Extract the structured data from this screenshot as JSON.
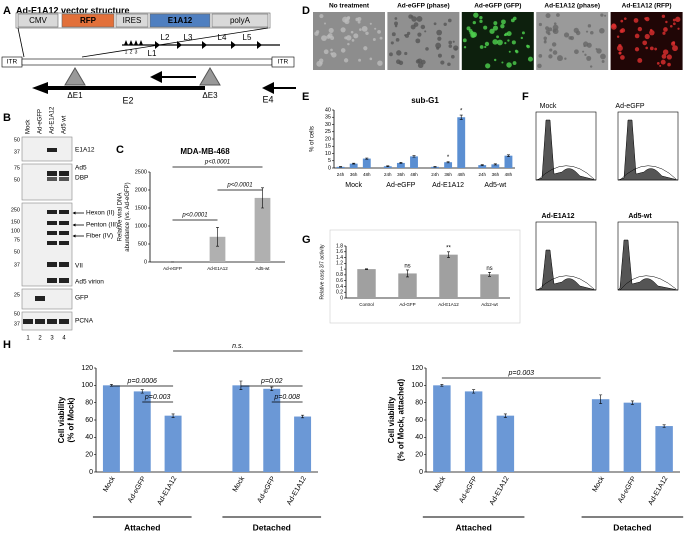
{
  "panel_labels": [
    "A",
    "B",
    "C",
    "D",
    "E",
    "F",
    "G",
    "H"
  ],
  "panel_a": {
    "title": "Ad-E1A12 vector structure",
    "construct": [
      "CMV",
      "RFP",
      "IRES",
      "E1A12",
      "polyA"
    ],
    "genes": [
      "L1",
      "L2",
      "L3",
      "L4",
      "L5"
    ],
    "leader_numbers": [
      "1",
      "2",
      "3"
    ],
    "itr": [
      "ITR",
      "ITR"
    ],
    "deletions": [
      "ΔE1",
      "ΔE3"
    ],
    "transcripts": [
      "E2",
      "E4"
    ]
  },
  "panel_b": {
    "lanes": [
      "Mock",
      "Ad-eGFP",
      "Ad-E1A12",
      "Ad5 wt"
    ],
    "lane_numbers": [
      "1",
      "2",
      "3",
      "4"
    ],
    "markers": [
      50,
      37,
      75,
      50,
      250,
      150,
      100,
      75,
      50,
      37,
      25,
      50,
      37
    ],
    "bands": [
      "E1A12",
      "Ad5",
      "DBP",
      "Hexon (II)",
      "Penton (III)",
      "Fiber (IV)",
      "VII",
      "Ad5 virion",
      "GFP",
      "PCNA"
    ]
  },
  "panel_d": {
    "labels": [
      "No treatment",
      "Ad-eGFP (phase)",
      "Ad-eGFP (GFP)",
      "Ad-E1A12 (phase)",
      "Ad-E1A12 (RFP)"
    ]
  },
  "panel_f": {
    "labels": [
      "Mock",
      "Ad-eGFP",
      "Ad-E1A12",
      "Ad5-wt"
    ]
  },
  "chart_data": [
    {
      "type": "bar",
      "title": "MDA-MB-468",
      "ylabel": [
        "Relative viral DNA",
        "abundance (vs. Ad-eGFP)"
      ],
      "categories": [
        "Ad-eGFP",
        "Ad-E1A12",
        "Ad5-wt"
      ],
      "values": [
        1,
        700,
        1780
      ],
      "errors": [
        0,
        260,
        280
      ],
      "color": "#b0b0b0",
      "ylim": [
        0,
        2500
      ],
      "yticks": [
        0,
        500,
        1000,
        1500,
        2000,
        2500
      ],
      "annotations": [
        "p<0.0001",
        "p<0.0001",
        "p<0.0001"
      ]
    },
    {
      "type": "bar",
      "title": "sub-G1",
      "ylabel": [
        "% of cells"
      ],
      "categories": [
        "24h",
        "36h",
        "48h",
        "24h",
        "36h",
        "48h",
        "24h",
        "36h",
        "48h",
        "24h",
        "36h",
        "48h"
      ],
      "groups": [
        "Mock",
        "Ad-eGFP",
        "Ad-E1A12",
        "Ad5-wt"
      ],
      "values": [
        0.8,
        3,
        6.5,
        1.2,
        3.5,
        8,
        0.8,
        4,
        35,
        2,
        2.5,
        8.5
      ],
      "errors": [
        0.2,
        0.3,
        0.4,
        0.3,
        0.4,
        0.5,
        0.2,
        0.4,
        1.5,
        0.3,
        0.4,
        0.6
      ],
      "color": "#5b8fd2",
      "ylim": [
        0,
        40
      ],
      "yticks": [
        0,
        5,
        10,
        15,
        20,
        25,
        30,
        35,
        40
      ],
      "annotations": [
        "*",
        "*"
      ]
    },
    {
      "type": "bar",
      "ylabel": [
        "Relative casp 3/7 activity"
      ],
      "categories": [
        "Control",
        "Ad-GFP",
        "Ad-E1A12",
        "Ad12-wt"
      ],
      "values": [
        1,
        0.85,
        1.5,
        0.82
      ],
      "errors": [
        0.01,
        0.12,
        0.1,
        0.07
      ],
      "color": "#a0a0a0",
      "ylim": [
        0,
        1.8
      ],
      "yticks": [
        0,
        0.2,
        0.4,
        0.6,
        0.8,
        1,
        1.2,
        1.4,
        1.6,
        1.8
      ],
      "annotations": [
        "ns",
        "**",
        "ns"
      ]
    },
    {
      "type": "bar",
      "ylabel": [
        "Cell viability",
        "(% of Mock)"
      ],
      "categories": [
        "Mock",
        "Ad-eGFP",
        "Ad-E1A12",
        "Mock",
        "Ad-eGFP",
        "Ad-E1A12"
      ],
      "groups": [
        "Attached",
        "Detached"
      ],
      "values": [
        100,
        93,
        65,
        100,
        96,
        64
      ],
      "errors": [
        1,
        2,
        2,
        5,
        2,
        1.5
      ],
      "color": "#6b98d6",
      "ylim": [
        0,
        120
      ],
      "yticks": [
        0,
        20,
        40,
        60,
        80,
        100,
        120
      ],
      "annotations": [
        "p=0.0006",
        "p=0.003",
        "n.s.",
        "p=0.02",
        "p=0.008"
      ]
    },
    {
      "type": "bar",
      "ylabel": [
        "Cell viability",
        "(% of Mock, attached)"
      ],
      "categories": [
        "Mock",
        "Ad-eGFP",
        "Ad-E1A12",
        "Mock",
        "Ad-eGFP",
        "Ad-E1A12"
      ],
      "groups": [
        "Attached",
        "Detached"
      ],
      "values": [
        100,
        93,
        65,
        84,
        80,
        53
      ],
      "errors": [
        1,
        2,
        2,
        5,
        2,
        1.5
      ],
      "color": "#6b98d6",
      "ylim": [
        0,
        120
      ],
      "yticks": [
        0,
        20,
        40,
        60,
        80,
        100,
        120
      ],
      "annotations": [
        "p=0.003"
      ]
    }
  ]
}
